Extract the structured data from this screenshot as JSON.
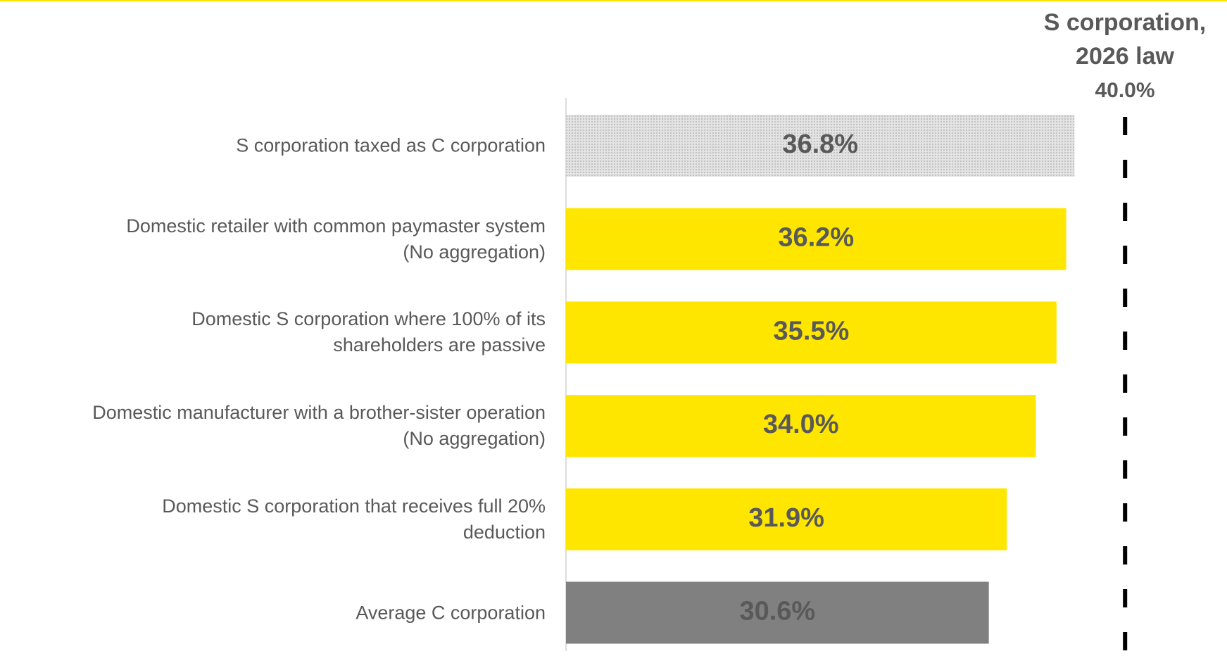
{
  "chart_data": {
    "type": "barh",
    "categories": [
      "S corporation taxed as C corporation",
      "Domestic retailer with common paymaster system\n(No aggregation)",
      "Domestic S corporation where 100% of its\nshareholders are passive",
      "Domestic manufacturer with a brother-sister operation\n(No aggregation)",
      "Domestic S corporation that receives full 20%\ndeduction",
      "Average C corporation"
    ],
    "values": [
      36.8,
      36.2,
      35.5,
      34.0,
      31.9,
      30.6
    ],
    "value_labels": [
      "36.8%",
      "36.2%",
      "35.5%",
      "34.0%",
      "31.9%",
      "30.6%"
    ],
    "colors": [
      "#e3e3e3",
      "#ffe600",
      "#ffe600",
      "#ffe600",
      "#ffe600",
      "#808080"
    ],
    "xlim": [
      0,
      40
    ],
    "reference_line": {
      "label": "S corporation,\n2026 law",
      "value": 40.0,
      "value_label": "40.0%",
      "color": "#000000"
    }
  }
}
